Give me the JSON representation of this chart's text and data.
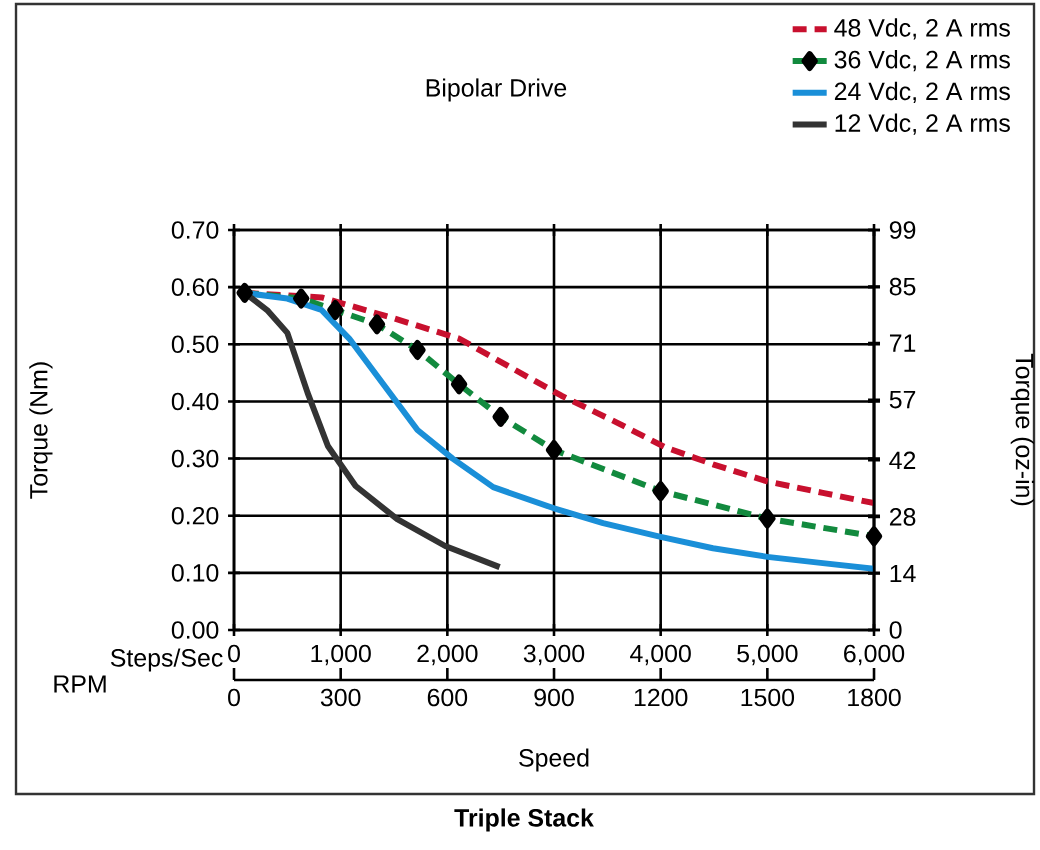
{
  "chart_data": {
    "type": "line",
    "title": "Triple Stack",
    "legend_title": "Bipolar Drive",
    "xlabel": "Steps/Sec",
    "x2label": "RPM",
    "ylabel": "Torque (Nm)",
    "y2label": "Torque (oz-in)",
    "annotations": [
      "Speed"
    ],
    "xlim": [
      0,
      6000
    ],
    "xticks": [
      0,
      {
        "value": 1000,
        "label": "1,000"
      },
      {
        "value": 2000,
        "label": "2,000"
      },
      {
        "value": 3000,
        "label": "3,000"
      },
      {
        "value": 4000,
        "label": "4,000"
      },
      {
        "value": 5000,
        "label": "5,000"
      },
      {
        "value": 6000,
        "label": "6,000"
      }
    ],
    "x2lim": [
      0,
      1800
    ],
    "x2ticks": [
      0,
      300,
      600,
      900,
      1200,
      1500,
      1800
    ],
    "ylim": [
      0,
      0.7
    ],
    "yticks": [
      {
        "value": 0,
        "label": "0.00"
      },
      {
        "value": 0.1,
        "label": "0.10"
      },
      {
        "value": 0.2,
        "label": "0.20"
      },
      {
        "value": 0.3,
        "label": "0.30"
      },
      {
        "value": 0.4,
        "label": "0.40"
      },
      {
        "value": 0.5,
        "label": "0.50"
      },
      {
        "value": 0.6,
        "label": "0.60"
      },
      {
        "value": 0.7,
        "label": "0.70"
      }
    ],
    "y2lim": [
      0,
      99
    ],
    "y2ticks": [
      0,
      14,
      28,
      42,
      57,
      71,
      85,
      99
    ],
    "grid": true,
    "legend": "top right",
    "series": [
      {
        "name": "48 Vdc, 2 A rms",
        "color": "#c8102e",
        "line_style": "dashed",
        "marker": "none",
        "x": [
          100,
          820,
          1470,
          2110,
          2560,
          3070,
          3590,
          4040,
          4490,
          5000,
          5520,
          6000
        ],
        "values": [
          0.59,
          0.582,
          0.547,
          0.51,
          0.463,
          0.41,
          0.363,
          0.32,
          0.29,
          0.26,
          0.24,
          0.222
        ]
      },
      {
        "name": "36 Vdc, 2 A rms",
        "color": "#128a3e",
        "line_style": "dashed",
        "marker": "diamond",
        "x": [
          100,
          630,
          950,
          1340,
          1720,
          2110,
          2500,
          3000,
          4000,
          5000,
          6000
        ],
        "values": [
          0.59,
          0.58,
          0.56,
          0.535,
          0.49,
          0.43,
          0.373,
          0.315,
          0.243,
          0.195,
          0.164
        ]
      },
      {
        "name": "24 Vdc, 2 A rms",
        "color": "#1a8fd8",
        "line_style": "solid",
        "marker": "none",
        "x": [
          100,
          500,
          820,
          1080,
          1400,
          1720,
          2050,
          2430,
          3000,
          3460,
          4000,
          4490,
          5000,
          5520,
          6000
        ],
        "values": [
          0.59,
          0.58,
          0.56,
          0.51,
          0.43,
          0.35,
          0.3,
          0.25,
          0.213,
          0.187,
          0.163,
          0.143,
          0.128,
          0.117,
          0.107
        ]
      },
      {
        "name": "12 Vdc, 2 A rms",
        "color": "#333333",
        "line_style": "solid",
        "marker": "none",
        "x": [
          100,
          310,
          500,
          690,
          880,
          1140,
          1530,
          1980,
          2490
        ],
        "values": [
          0.59,
          0.56,
          0.52,
          0.415,
          0.322,
          0.252,
          0.194,
          0.147,
          0.11
        ]
      }
    ]
  }
}
